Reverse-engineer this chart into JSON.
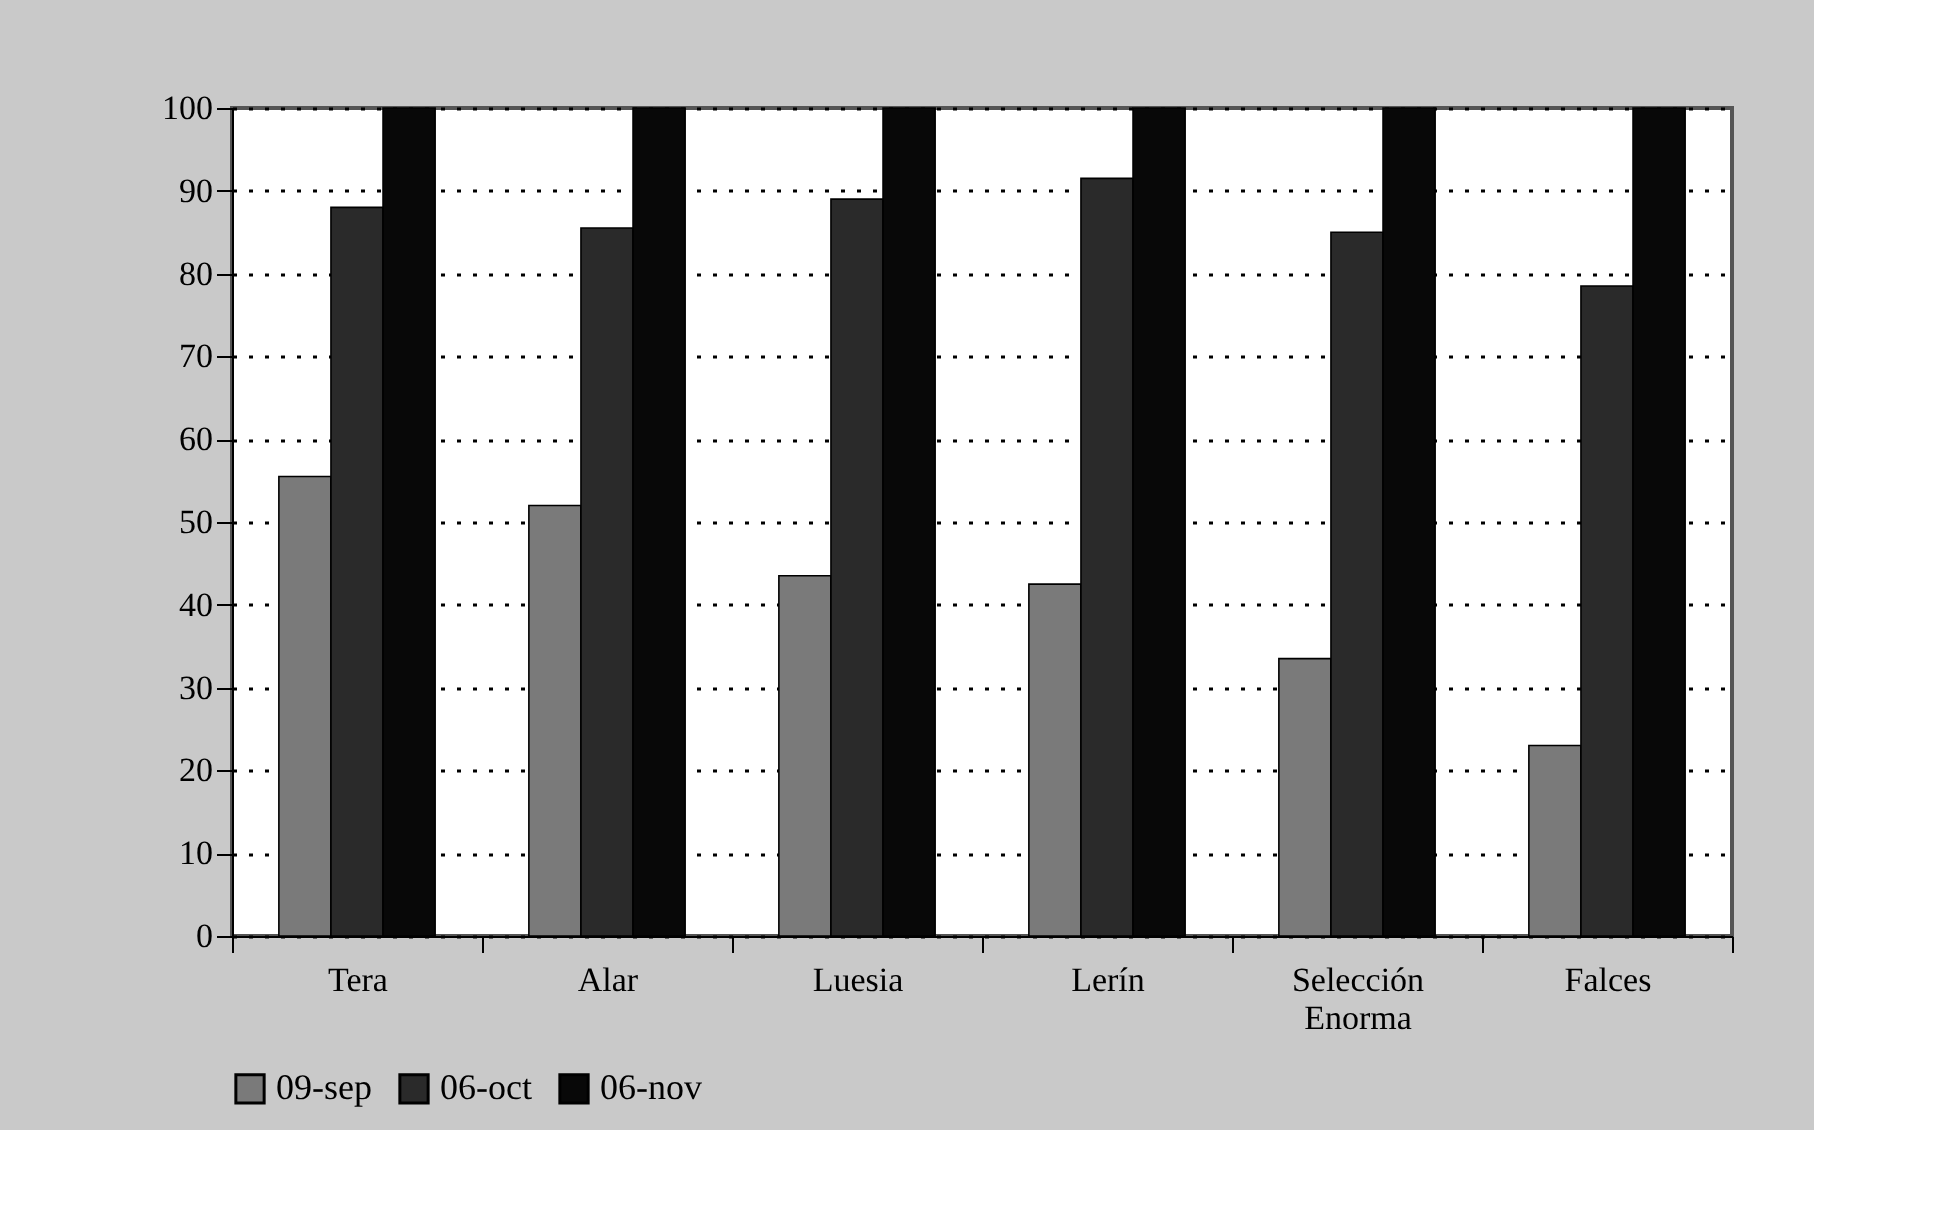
{
  "chart_data": {
    "type": "bar",
    "categories": [
      "Tera",
      "Alar",
      "Luesia",
      "Lerín",
      "Selección Enorma",
      "Falces"
    ],
    "series": [
      {
        "name": "09-sep",
        "color": "#7a7a7a",
        "values": [
          55.5,
          52,
          43.5,
          42.5,
          33.5,
          23
        ]
      },
      {
        "name": "06-oct",
        "color": "#2a2a2a",
        "values": [
          88,
          85.5,
          89,
          91.5,
          85,
          78.5
        ]
      },
      {
        "name": "06-nov",
        "color": "#080808",
        "values": [
          100,
          100,
          100,
          100,
          100,
          100
        ]
      }
    ],
    "ylim": [
      0,
      100
    ],
    "yticks": [
      0,
      10,
      20,
      30,
      40,
      50,
      60,
      70,
      80,
      90,
      100
    ],
    "grid": "y",
    "legend": "bottom"
  }
}
